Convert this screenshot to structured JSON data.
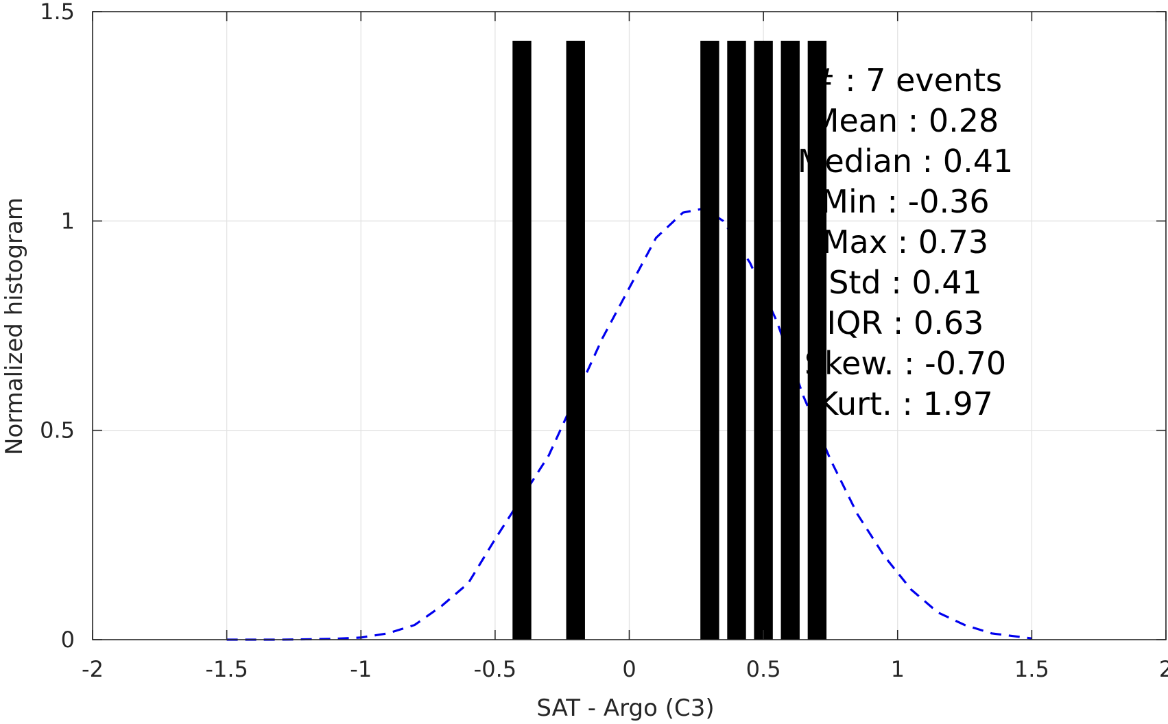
{
  "chart_data": {
    "type": "bar",
    "xlabel": "SAT - Argo (C3)",
    "ylabel": "Normalized histogram",
    "xlim": [
      -2,
      2
    ],
    "ylim": [
      0,
      1.5
    ],
    "xticks": [
      -2,
      -1.5,
      -1,
      -0.5,
      0,
      0.5,
      1,
      1.5,
      2
    ],
    "xtick_labels": [
      "-2",
      "-1.5",
      "-1",
      "-0.5",
      "0",
      "0.5",
      "1",
      "1.5",
      "2"
    ],
    "yticks": [
      0,
      0.5,
      1,
      1.5
    ],
    "ytick_labels": [
      "0",
      "0.5",
      "1",
      "1.5"
    ],
    "grid": true,
    "bars": {
      "color": "#000000",
      "bin_width": 0.07,
      "centers": [
        -0.4,
        -0.2,
        0.3,
        0.4,
        0.5,
        0.6,
        0.7
      ],
      "values": [
        1.43,
        1.43,
        1.43,
        1.43,
        1.43,
        1.43,
        1.43
      ]
    },
    "fit_curve": {
      "style": "dashed",
      "color": "#0000ee",
      "x": [
        -1.5,
        -1.3,
        -1.1,
        -1.0,
        -0.9,
        -0.8,
        -0.7,
        -0.6,
        -0.5,
        -0.4,
        -0.3,
        -0.2,
        -0.1,
        0.0,
        0.1,
        0.2,
        0.28,
        0.35,
        0.45,
        0.55,
        0.65,
        0.75,
        0.85,
        0.95,
        1.05,
        1.15,
        1.25,
        1.35,
        1.5
      ],
      "y": [
        0.0,
        0.0,
        0.002,
        0.005,
        0.015,
        0.035,
        0.08,
        0.135,
        0.24,
        0.34,
        0.44,
        0.58,
        0.72,
        0.84,
        0.96,
        1.02,
        1.03,
        1.0,
        0.9,
        0.76,
        0.58,
        0.43,
        0.3,
        0.2,
        0.12,
        0.065,
        0.035,
        0.015,
        0.003
      ]
    },
    "annotation_lines": [
      "# : 7 events",
      "Mean : 0.28",
      "Median : 0.41",
      "Min : -0.36",
      "Max : 0.73",
      "Std : 0.41",
      "IQR : 0.63",
      "Skew. : -0.70",
      "Kurt. : 1.97"
    ]
  }
}
